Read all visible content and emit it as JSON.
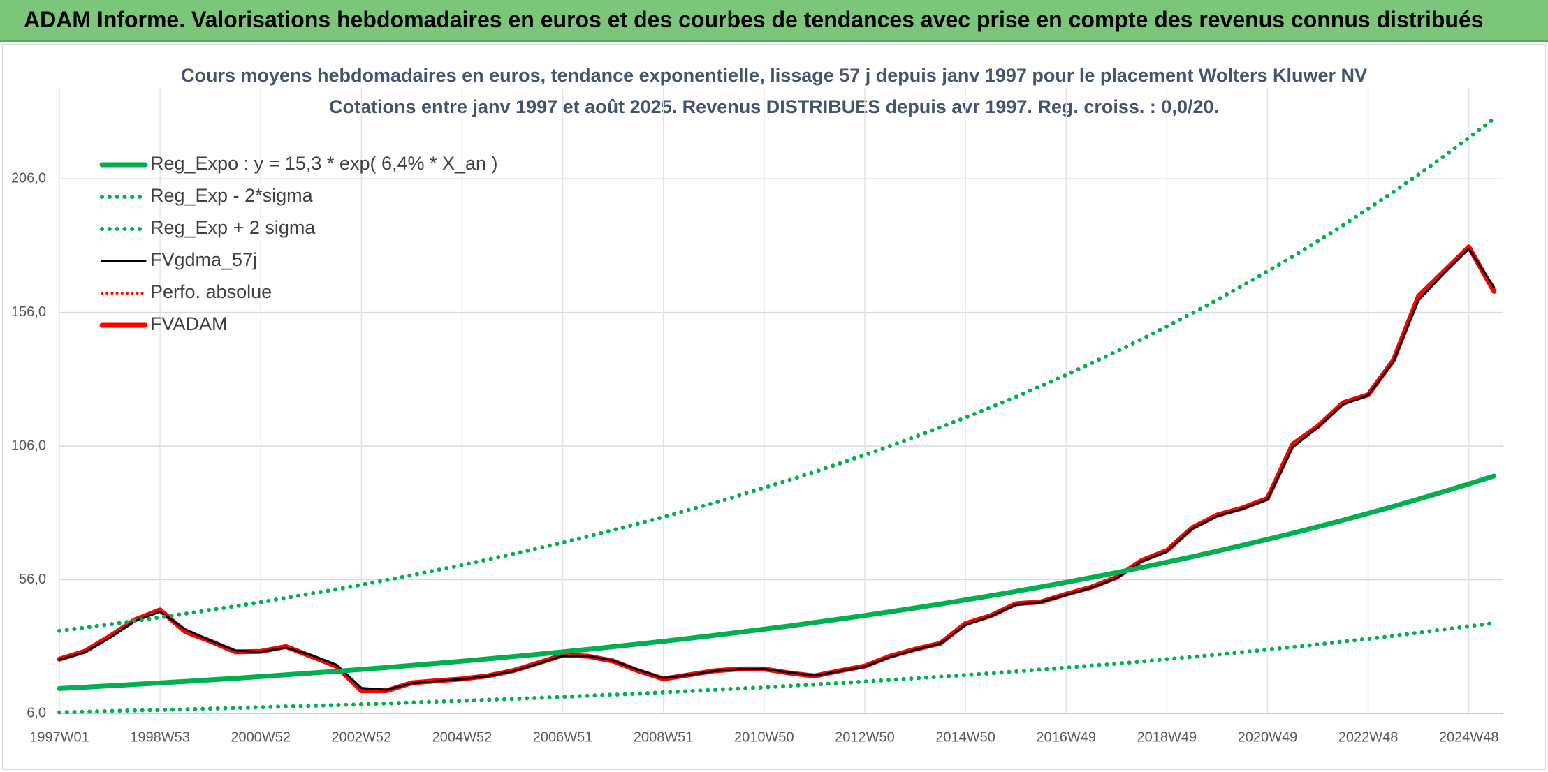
{
  "header": {
    "title": "ADAM Informe. Valorisations hebdomadaires en euros et des courbes de tendances avec prise en compte des revenus connus distribués"
  },
  "chart_data": {
    "type": "line",
    "title": "Cours moyens hebdomadaires en euros, tendance exponentielle, lissage 57 j depuis janv 1997 pour le placement Wolters Kluwer NV",
    "subtitle": "Cotations entre janv 1997 et août 2025. Revenus DISTRIBUES depuis avr 1997. Reg. croiss. : 0,0/20.",
    "categories": [
      "1997W01",
      null,
      null,
      null,
      "1998W53",
      null,
      null,
      null,
      "2000W52",
      null,
      null,
      null,
      "2002W52",
      null,
      null,
      null,
      "2004W52",
      null,
      null,
      null,
      "2006W51",
      null,
      null,
      null,
      "2008W51",
      null,
      null,
      null,
      "2010W50",
      null,
      null,
      null,
      "2012W50",
      null,
      null,
      null,
      "2014W50",
      null,
      null,
      null,
      "2016W49",
      null,
      null,
      null,
      "2018W49",
      null,
      null,
      null,
      "2020W49",
      null,
      null,
      null,
      "2022W48",
      null,
      null,
      null,
      "2024W48",
      null
    ],
    "ylim": [
      6,
      240
    ],
    "yticks": [
      {
        "value": 6,
        "label": "6,0"
      },
      {
        "value": 56,
        "label": "56,0"
      },
      {
        "value": 106,
        "label": "106,0"
      },
      {
        "value": 156,
        "label": "156,0"
      },
      {
        "value": 206,
        "label": "206,0"
      }
    ],
    "grid": true,
    "legend": "top-left",
    "series": [
      {
        "name": "Reg_Expo : y = 15,3 * exp( 6,4% *  X_an )",
        "color": "#00b050",
        "style": "solid",
        "width": 7,
        "values": [
          15.3,
          15.8,
          16.31,
          16.84,
          17.39,
          17.95,
          18.54,
          19.14,
          19.76,
          20.41,
          21.07,
          21.76,
          22.46,
          23.19,
          23.95,
          24.73,
          25.53,
          26.36,
          27.22,
          28.1,
          29.02,
          29.96,
          30.94,
          31.94,
          32.98,
          34.06,
          35.16,
          36.31,
          37.49,
          38.71,
          39.97,
          41.27,
          42.61,
          44.0,
          45.43,
          46.9,
          48.43,
          50.0,
          51.63,
          53.31,
          55.04,
          56.83,
          58.68,
          60.59,
          62.56,
          64.59,
          66.69,
          68.86,
          71.1,
          73.41,
          75.8,
          78.26,
          80.81,
          83.44,
          86.15,
          88.95,
          91.85,
          94.83
        ]
      },
      {
        "name": "Reg_Exp - 2*sigma",
        "color": "#00b050",
        "style": "dotted",
        "width": 6,
        "values": [
          6.4,
          6.6,
          6.9,
          7.1,
          7.3,
          7.5,
          7.8,
          8.0,
          8.3,
          8.6,
          8.8,
          9.1,
          9.4,
          9.7,
          10.1,
          10.4,
          10.7,
          11.1,
          11.4,
          11.8,
          12.2,
          12.6,
          13.0,
          13.4,
          13.9,
          14.3,
          14.8,
          15.3,
          15.7,
          16.3,
          16.8,
          17.3,
          17.9,
          18.5,
          19.1,
          19.7,
          20.3,
          21.0,
          21.7,
          22.4,
          23.1,
          23.9,
          24.6,
          25.4,
          26.3,
          27.1,
          28.0,
          28.9,
          29.9,
          30.8,
          31.8,
          32.9,
          33.9,
          35.0,
          36.2,
          37.4,
          38.6,
          39.8
        ]
      },
      {
        "name": "Reg_Exp + 2 sigma",
        "color": "#00b050",
        "style": "dotted",
        "width": 6,
        "values": [
          36.9,
          38.1,
          39.3,
          40.6,
          41.9,
          43.3,
          44.7,
          46.1,
          47.6,
          49.2,
          50.8,
          52.4,
          54.1,
          55.9,
          57.7,
          59.6,
          61.5,
          63.5,
          65.6,
          67.7,
          69.9,
          72.2,
          74.6,
          77.0,
          79.5,
          82.1,
          84.7,
          87.5,
          90.4,
          93.3,
          96.3,
          99.5,
          102.7,
          106.0,
          109.5,
          113.0,
          116.7,
          120.5,
          124.4,
          128.5,
          132.6,
          137.0,
          141.4,
          146.0,
          150.8,
          155.7,
          160.7,
          166.0,
          171.4,
          176.9,
          182.7,
          188.6,
          194.8,
          201.1,
          207.6,
          214.4,
          221.4,
          228.5
        ]
      },
      {
        "name": "FVgdma_57j",
        "color": "#000000",
        "style": "solid",
        "width": 3,
        "values": [
          26.0,
          28.8,
          34.2,
          40.5,
          44.0,
          37.5,
          33.2,
          29.5,
          29.0,
          30.6,
          27.8,
          24.2,
          15.5,
          14.8,
          17.2,
          18.1,
          18.8,
          19.9,
          21.7,
          24.5,
          27.5,
          27.5,
          25.8,
          22.3,
          19.2,
          20.3,
          21.8,
          22.5,
          22.6,
          21.3,
          20.1,
          21.7,
          23.5,
          27.0,
          29.8,
          32.0,
          39.0,
          42.3,
          46.6,
          47.6,
          50.3,
          53.0,
          56.5,
          62.8,
          66.5,
          75.0,
          79.8,
          82.5,
          86.0,
          105.5,
          113.0,
          121.5,
          125.0,
          137.5,
          160.5,
          170.5,
          179.8,
          165.5
        ]
      },
      {
        "name": "Perfo. absolue",
        "color": "#ff0000",
        "style": "dotted",
        "width": 4,
        "values": [
          null,
          null,
          null,
          null,
          null,
          null,
          null,
          null,
          null,
          null,
          null,
          null,
          null,
          null,
          null,
          null,
          null,
          null,
          null,
          null,
          null,
          null,
          null,
          null,
          null,
          null,
          null,
          null,
          null,
          null,
          null,
          null,
          null,
          null,
          null,
          null,
          null,
          null,
          null,
          null,
          null,
          null,
          null,
          null,
          null,
          null,
          null,
          null,
          null,
          null,
          null,
          null,
          null,
          null,
          null,
          null,
          null,
          null
        ]
      },
      {
        "name": "FVADAM",
        "color": "#ff0000",
        "style": "solid",
        "width": 7,
        "values": [
          26.3,
          29.2,
          34.8,
          41.0,
          44.7,
          36.6,
          33.0,
          29.0,
          29.2,
          31.0,
          27.4,
          23.7,
          14.5,
          14.5,
          17.4,
          18.2,
          18.9,
          20.0,
          21.9,
          24.8,
          27.8,
          27.4,
          25.6,
          21.9,
          18.9,
          20.4,
          21.9,
          22.6,
          22.6,
          21.1,
          20.0,
          21.9,
          23.7,
          27.4,
          30.0,
          32.2,
          39.6,
          42.5,
          47.0,
          47.7,
          50.6,
          53.2,
          56.9,
          63.2,
          66.9,
          75.4,
          80.2,
          82.8,
          86.4,
          106.7,
          113.4,
          122.2,
          125.2,
          138.1,
          162.1,
          171.3,
          180.5,
          163.9
        ]
      }
    ]
  }
}
